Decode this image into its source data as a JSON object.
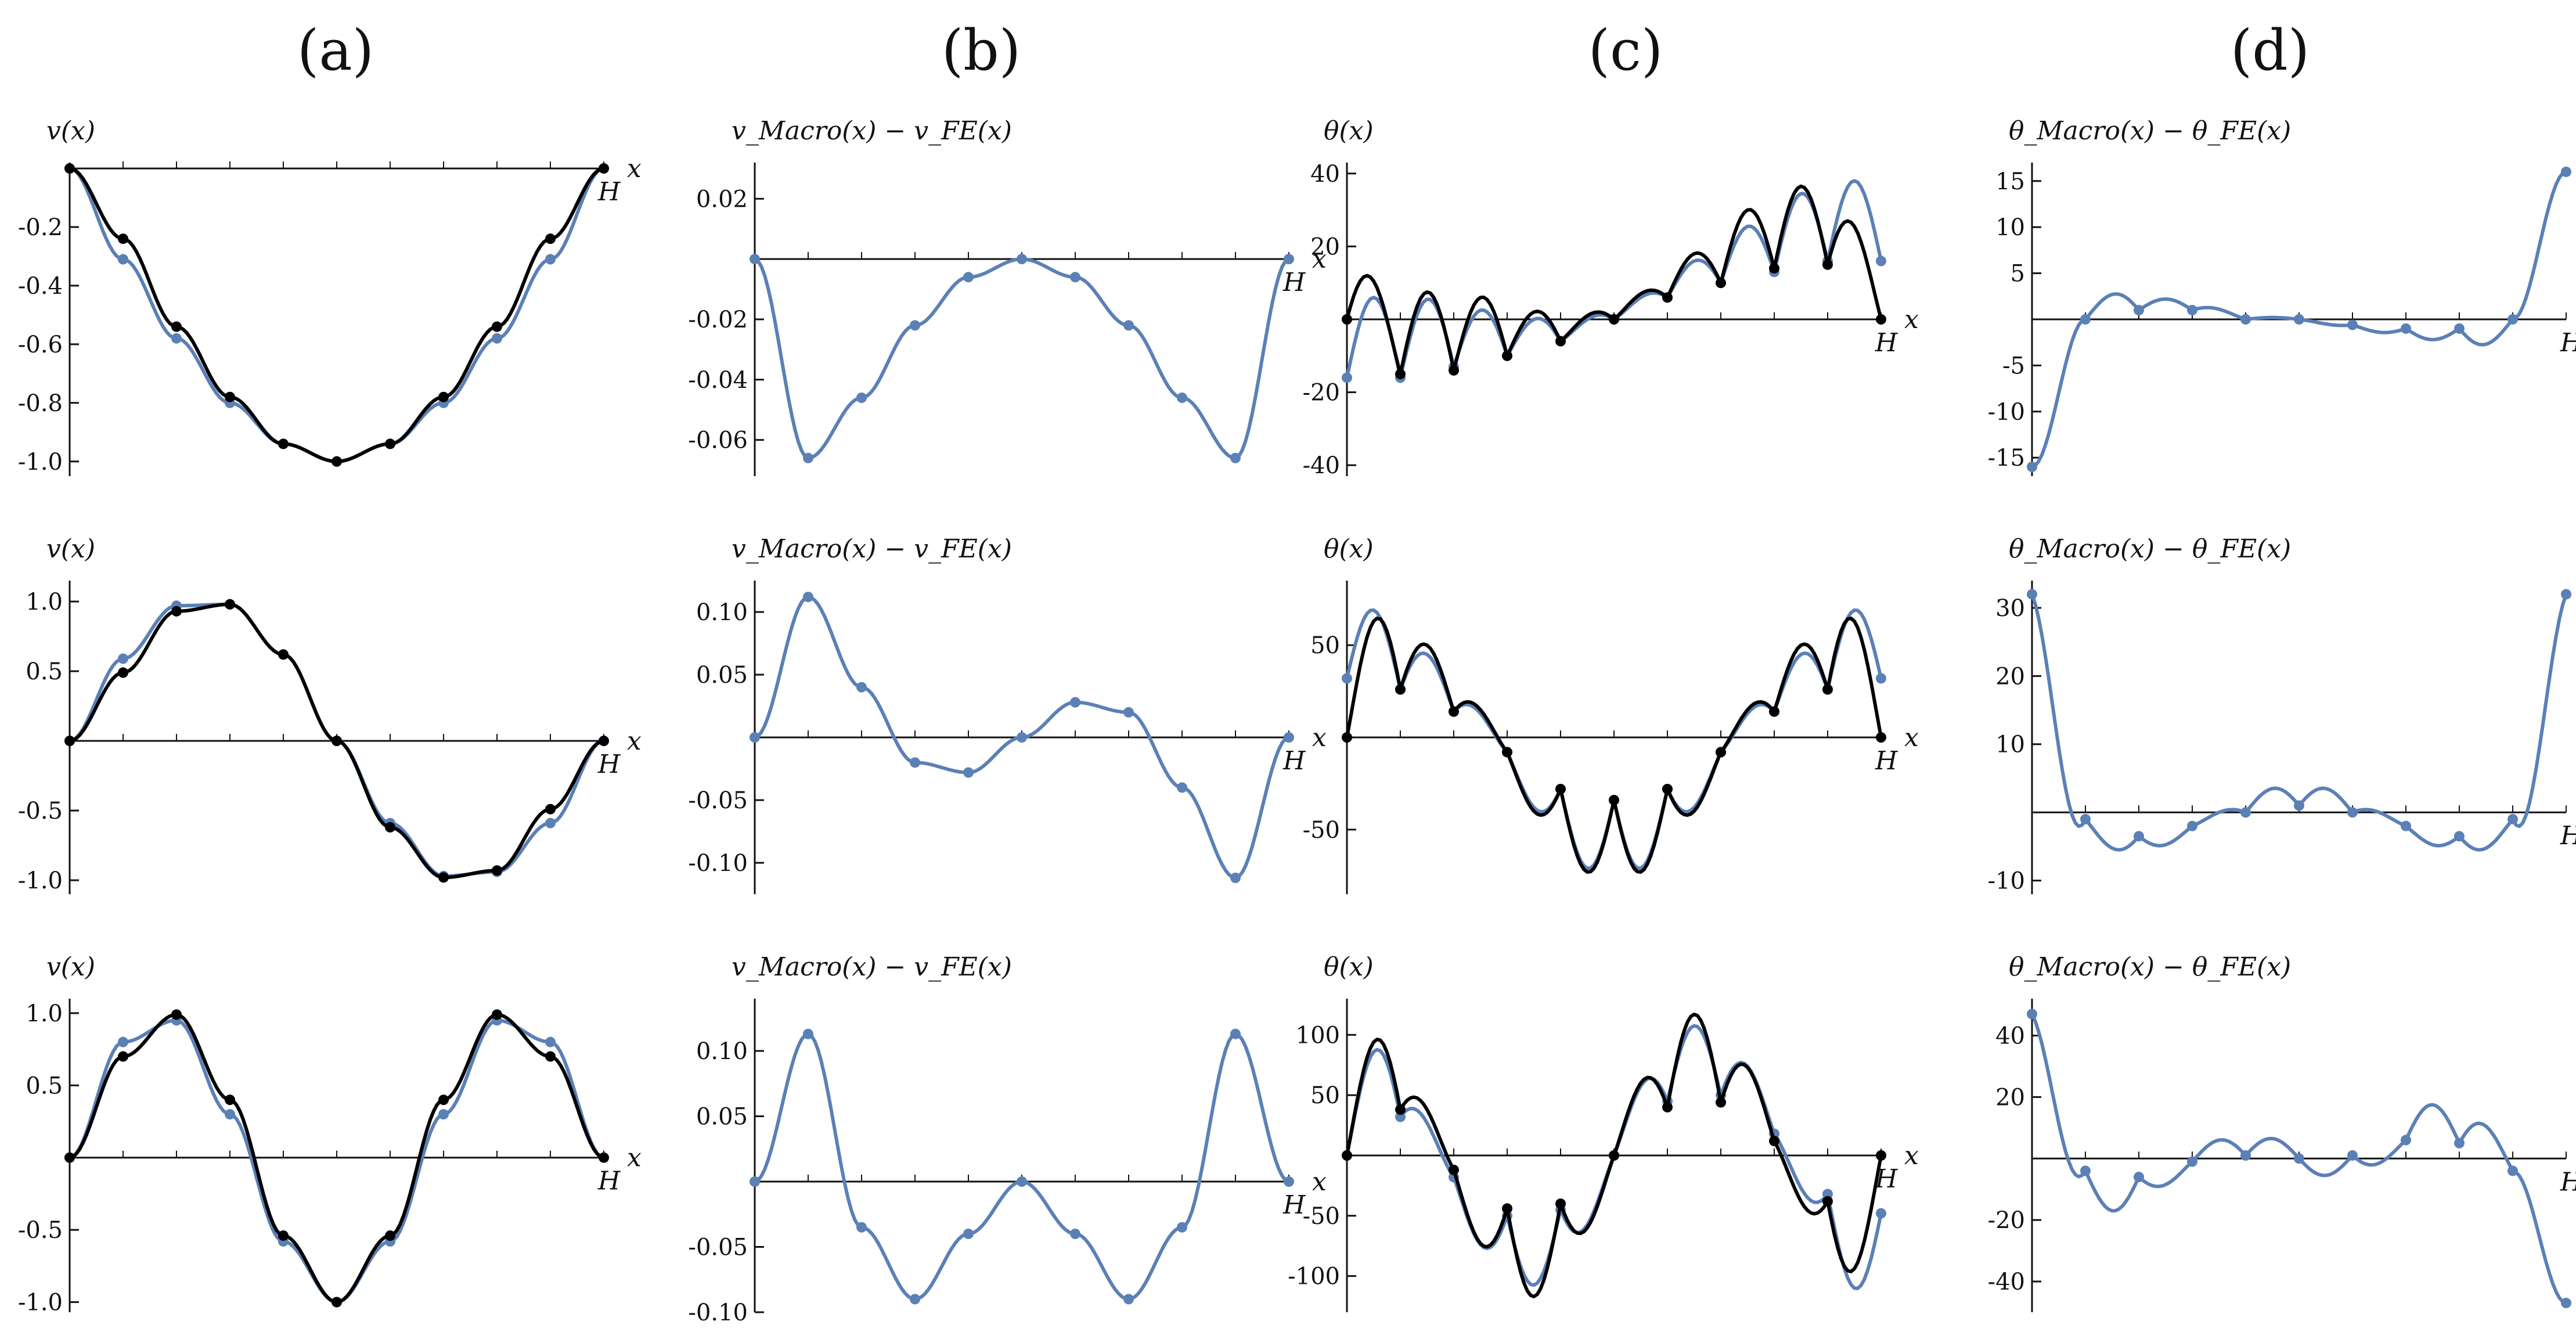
{
  "column_titles": [
    "(a)",
    "(b)",
    "(c)",
    "(d)"
  ],
  "colors": {
    "macro": "#5b80b6",
    "fe": "#000000",
    "axis": "#111111"
  },
  "chart_data": [
    {
      "panel": "a1",
      "type": "line",
      "ylabel": "v(x)",
      "xlabel": "x",
      "x_end_label": "H",
      "ylim": [
        -1.05,
        0.02
      ],
      "yticks": [
        -0.2,
        -0.4,
        -0.6,
        -0.8,
        -1.0
      ],
      "ytick_labels": [
        "-0.2",
        "-0.4",
        "-0.6",
        "-0.8",
        "-1.0"
      ],
      "series": [
        {
          "role": "macro",
          "values": [
            0,
            -0.31,
            -0.58,
            -0.8,
            -0.94,
            -1.0,
            -0.94,
            -0.8,
            -0.58,
            -0.31,
            0
          ]
        },
        {
          "role": "fe",
          "values": [
            0,
            -0.24,
            -0.54,
            -0.78,
            -0.94,
            -1.0,
            -0.94,
            -0.78,
            -0.54,
            -0.24,
            0
          ]
        }
      ]
    },
    {
      "panel": "b1",
      "type": "line",
      "ylabel": "v_Macro(x) − v_FE(x)",
      "xlabel": "x",
      "x_end_label": "H",
      "ylim": [
        -0.072,
        0.032
      ],
      "yticks": [
        0.02,
        -0.02,
        -0.04,
        -0.06
      ],
      "ytick_labels": [
        "0.02",
        "-0.02",
        "-0.04",
        "-0.06"
      ],
      "series": [
        {
          "role": "macro",
          "values": [
            0,
            -0.066,
            -0.046,
            -0.022,
            -0.006,
            0,
            -0.006,
            -0.022,
            -0.046,
            -0.066,
            0
          ]
        }
      ]
    },
    {
      "panel": "c1",
      "type": "line",
      "ylabel": "θ(x)",
      "xlabel": "x",
      "x_end_label": "H",
      "ylim": [
        -43,
        43
      ],
      "yticks": [
        40,
        20,
        -20,
        -40
      ],
      "ytick_labels": [
        "40",
        "20",
        "-20",
        "-40"
      ],
      "series": [
        {
          "role": "macro",
          "values": [
            -16,
            -16,
            -13,
            -10,
            -6,
            0,
            6,
            10,
            13,
            16,
            16
          ],
          "amps": [
            22,
            20,
            14,
            8,
            3,
            3,
            8,
            14,
            20,
            22
          ]
        },
        {
          "role": "fe",
          "values": [
            0,
            -15,
            -14,
            -10,
            -6,
            0,
            6,
            10,
            14,
            15,
            0
          ],
          "amps": [
            18,
            22,
            18,
            10,
            4,
            4,
            10,
            18,
            22,
            18
          ]
        }
      ]
    },
    {
      "panel": "d1",
      "type": "line",
      "ylabel": "θ_Macro(x) − θ_FE(x)",
      "xlabel": "x",
      "x_end_label": "H",
      "ylim": [
        -17,
        17
      ],
      "yticks": [
        15,
        10,
        5,
        -5,
        -10,
        -15
      ],
      "ytick_labels": [
        "15",
        "10",
        "5",
        "-5",
        "-10",
        "-15"
      ],
      "series": [
        {
          "role": "macro",
          "values": [
            -16,
            0,
            1,
            1,
            0,
            0,
            -0.6,
            -1,
            -1,
            0,
            16
          ],
          "amps": [
            0,
            2.2,
            1.2,
            0.6,
            0.2,
            -0.2,
            -0.6,
            -1.2,
            -2.2,
            0
          ]
        }
      ]
    },
    {
      "panel": "a2",
      "type": "line",
      "ylabel": "v(x)",
      "xlabel": "x",
      "x_end_label": "H",
      "ylim": [
        -1.1,
        1.15
      ],
      "yticks": [
        1.0,
        0.5,
        -0.5,
        -1.0
      ],
      "ytick_labels": [
        "1.0",
        "0.5",
        "-0.5",
        "-1.0"
      ],
      "series": [
        {
          "role": "macro",
          "values": [
            0,
            0.59,
            0.97,
            0.98,
            0.62,
            0,
            -0.59,
            -0.97,
            -0.94,
            -0.59,
            0
          ]
        },
        {
          "role": "fe",
          "values": [
            0,
            0.49,
            0.93,
            0.98,
            0.62,
            0,
            -0.62,
            -0.98,
            -0.93,
            -0.49,
            0
          ]
        }
      ]
    },
    {
      "panel": "b2",
      "type": "line",
      "ylabel": "v_Macro(x) − v_FE(x)",
      "xlabel": "x",
      "x_end_label": "H",
      "ylim": [
        -0.125,
        0.125
      ],
      "yticks": [
        0.1,
        0.05,
        -0.05,
        -0.1
      ],
      "ytick_labels": [
        "0.10",
        "0.05",
        "-0.05",
        "-0.10"
      ],
      "series": [
        {
          "role": "macro",
          "values": [
            0,
            0.112,
            0.04,
            -0.02,
            -0.028,
            0,
            0.028,
            0.02,
            -0.04,
            -0.112,
            0
          ]
        }
      ]
    },
    {
      "panel": "c2",
      "type": "line",
      "ylabel": "θ(x)",
      "xlabel": "x",
      "x_end_label": "H",
      "ylim": [
        -85,
        85
      ],
      "yticks": [
        50,
        -50
      ],
      "ytick_labels": [
        "50",
        "-50"
      ],
      "series": [
        {
          "role": "macro",
          "values": [
            32,
            26,
            14,
            -8,
            -28,
            -34,
            -28,
            -8,
            14,
            26,
            32
          ],
          "amps": [
            40,
            25,
            10,
            -20,
            -40,
            -40,
            -20,
            10,
            25,
            40
          ]
        },
        {
          "role": "fe",
          "values": [
            0,
            26,
            14,
            -8,
            -28,
            -34,
            -28,
            -8,
            14,
            26,
            0
          ],
          "amps": [
            50,
            30,
            12,
            -22,
            -42,
            -42,
            -22,
            12,
            30,
            50
          ]
        }
      ]
    },
    {
      "panel": "d2",
      "type": "line",
      "ylabel": "θ_Macro(x) − θ_FE(x)",
      "xlabel": "x",
      "x_end_label": "H",
      "ylim": [
        -12,
        34
      ],
      "yticks": [
        30,
        20,
        10,
        -10
      ],
      "ytick_labels": [
        "30",
        "20",
        "10",
        "-10"
      ],
      "series": [
        {
          "role": "macro",
          "values": [
            32,
            -1,
            -3.5,
            -2,
            0,
            1,
            0,
            -2,
            -3.5,
            -1,
            32
          ],
          "amps": [
            -6,
            -3,
            -2,
            1,
            3,
            3,
            1,
            -2,
            -3,
            -6
          ]
        }
      ]
    },
    {
      "panel": "a3",
      "type": "line",
      "ylabel": "v(x)",
      "xlabel": "x",
      "x_end_label": "H",
      "ylim": [
        -1.07,
        1.1
      ],
      "yticks": [
        1.0,
        0.5,
        -0.5,
        -1.0
      ],
      "ytick_labels": [
        "1.0",
        "0.5",
        "-0.5",
        "-1.0"
      ],
      "series": [
        {
          "role": "macro",
          "values": [
            0,
            0.8,
            0.95,
            0.3,
            -0.58,
            -1.0,
            -0.58,
            0.3,
            0.95,
            0.8,
            0
          ]
        },
        {
          "role": "fe",
          "values": [
            0,
            0.7,
            0.99,
            0.4,
            -0.54,
            -1.0,
            -0.54,
            0.4,
            0.99,
            0.7,
            0
          ]
        }
      ]
    },
    {
      "panel": "b3",
      "type": "line",
      "ylabel": "v_Macro(x) − v_FE(x)",
      "xlabel": "x",
      "x_end_label": "H",
      "ylim": [
        -0.1,
        0.14
      ],
      "yticks": [
        0.1,
        0.05,
        -0.05,
        -0.1
      ],
      "ytick_labels": [
        "0.10",
        "0.05",
        "-0.05",
        "-0.10"
      ],
      "series": [
        {
          "role": "macro",
          "values": [
            0,
            0.113,
            -0.035,
            -0.09,
            -0.04,
            0,
            -0.04,
            -0.09,
            -0.035,
            0.113,
            0
          ]
        }
      ]
    },
    {
      "panel": "c3",
      "type": "line",
      "ylabel": "θ(x)",
      "xlabel": "x",
      "x_end_label": "H",
      "ylim": [
        -130,
        130
      ],
      "yticks": [
        100,
        50,
        -50,
        -100
      ],
      "ytick_labels": [
        "100",
        "50",
        "-50",
        "-100"
      ],
      "series": [
        {
          "role": "macro",
          "values": [
            0,
            32,
            -18,
            -50,
            -45,
            0,
            45,
            50,
            18,
            -32,
            -48
          ],
          "amps": [
            70,
            20,
            -40,
            -60,
            -35,
            35,
            60,
            40,
            -20,
            -70
          ]
        },
        {
          "role": "fe",
          "values": [
            0,
            38,
            -12,
            -44,
            -40,
            0,
            40,
            44,
            12,
            -38,
            0
          ],
          "amps": [
            75,
            25,
            -45,
            -75,
            -40,
            40,
            75,
            45,
            -25,
            -75
          ]
        }
      ]
    },
    {
      "panel": "d3",
      "type": "line",
      "ylabel": "θ_Macro(x) − θ_FE(x)",
      "xlabel": "x",
      "x_end_label": "H",
      "ylim": [
        -50,
        52
      ],
      "yticks": [
        40,
        20,
        -20,
        -40
      ],
      "ytick_labels": [
        "40",
        "20",
        "-20",
        "-40"
      ],
      "series": [
        {
          "role": "macro",
          "values": [
            47,
            -4,
            -6,
            -1,
            1,
            0,
            1,
            6,
            5,
            -4,
            -47
          ],
          "amps": [
            -10,
            -12,
            -5,
            6,
            6,
            -6,
            -5,
            12,
            10,
            0
          ]
        }
      ]
    }
  ]
}
